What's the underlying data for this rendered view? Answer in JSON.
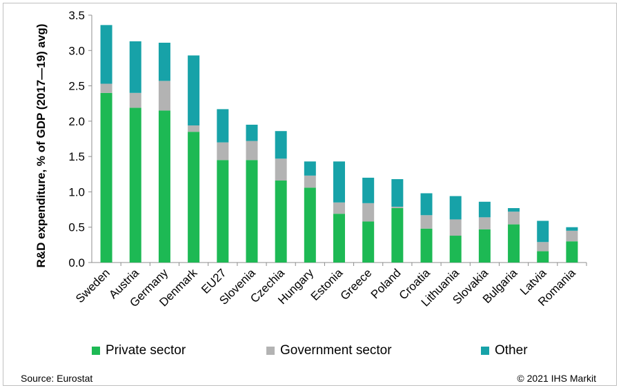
{
  "chart_data": {
    "type": "bar",
    "stacked": true,
    "ylabel": "R&D expenditure, % of GDP (2017—19) avg)",
    "ylim": [
      0,
      3.5
    ],
    "yticks": [
      "0.0",
      "0.5",
      "1.0",
      "1.5",
      "2.0",
      "2.5",
      "3.0",
      "3.5"
    ],
    "categories": [
      "Sweden",
      "Austria",
      "Germany",
      "Denmark",
      "EU27",
      "Slovenia",
      "Czechia",
      "Hungary",
      "Estonia",
      "Greece",
      "Poland",
      "Croatia",
      "Lithuania",
      "Slovakia",
      "Bulgaria",
      "Latvia",
      "Romania"
    ],
    "series": [
      {
        "name": "Private sector",
        "color": "#1db954",
        "values": [
          2.4,
          2.19,
          2.15,
          1.85,
          1.45,
          1.45,
          1.16,
          1.06,
          0.69,
          0.58,
          0.77,
          0.48,
          0.38,
          0.47,
          0.54,
          0.16,
          0.3
        ]
      },
      {
        "name": "Government sector",
        "color": "#b3b3b3",
        "values": [
          0.13,
          0.21,
          0.42,
          0.09,
          0.25,
          0.27,
          0.31,
          0.17,
          0.16,
          0.26,
          0.02,
          0.19,
          0.23,
          0.17,
          0.18,
          0.13,
          0.15
        ]
      },
      {
        "name": "Other",
        "color": "#17a2a8",
        "values": [
          0.83,
          0.73,
          0.54,
          0.99,
          0.47,
          0.23,
          0.39,
          0.2,
          0.58,
          0.36,
          0.39,
          0.31,
          0.33,
          0.22,
          0.05,
          0.3,
          0.05
        ]
      }
    ],
    "legend_position": "bottom",
    "grid": false
  },
  "footer": {
    "source": "Source: Eurostat",
    "copyright": "© 2021 IHS Markit"
  }
}
